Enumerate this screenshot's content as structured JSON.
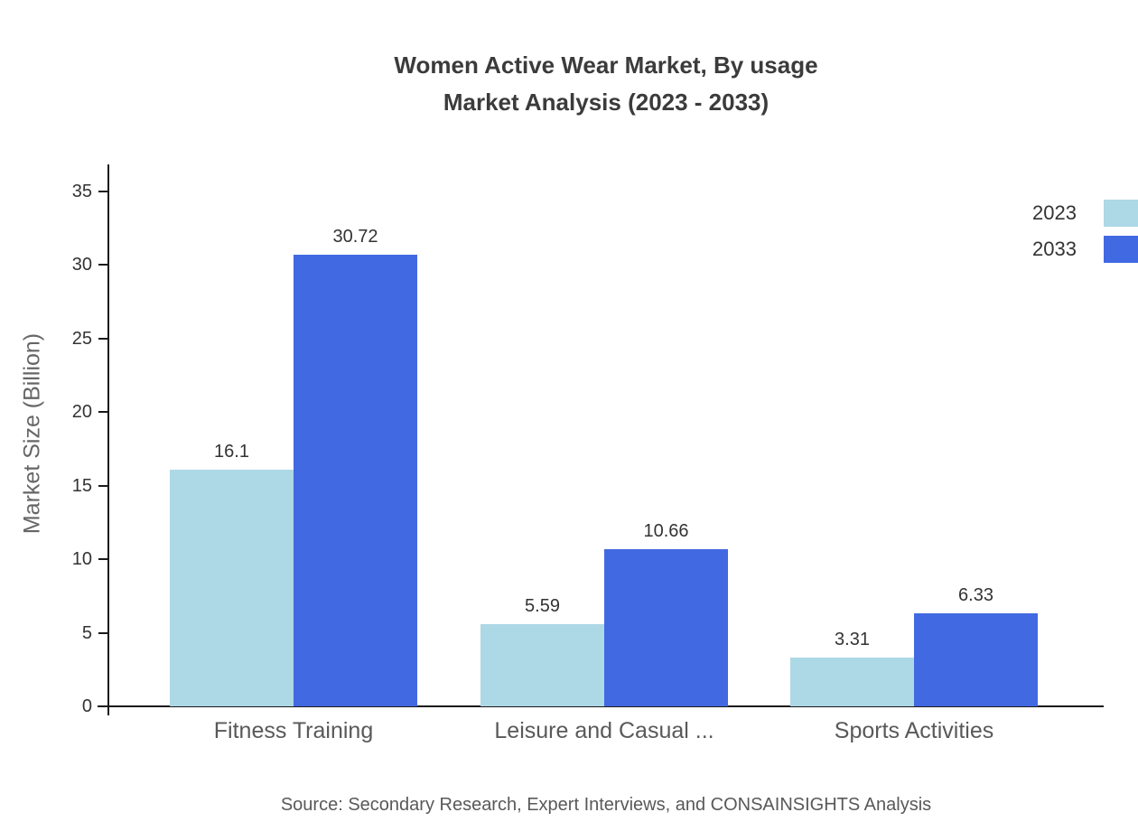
{
  "chart_data": {
    "type": "bar",
    "title_line1": "Women Active Wear Market, By usage",
    "title_line2": "Market Analysis (2023 - 2033)",
    "ylabel": "Market Size (Billion)",
    "categories": [
      "Fitness Training",
      "Leisure and Casual ...",
      "Sports Activities"
    ],
    "series": [
      {
        "name": "2023",
        "color": "#ADD8E6",
        "values": [
          16.1,
          5.59,
          3.31
        ]
      },
      {
        "name": "2033",
        "color": "#4169E1",
        "values": [
          30.72,
          10.66,
          6.33
        ]
      }
    ],
    "ylim": [
      0,
      35
    ],
    "yticks": [
      0,
      5,
      10,
      15,
      20,
      25,
      30,
      35
    ],
    "grid": false,
    "legend_position": "top-right",
    "source": "Source: Secondary Research, Expert Interviews, and CONSAINSIGHTS Analysis"
  }
}
